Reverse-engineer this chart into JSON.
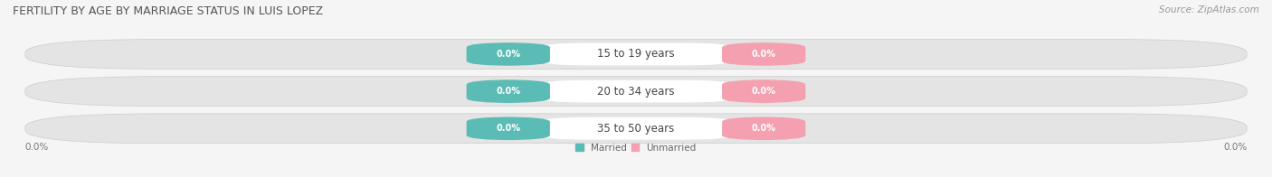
{
  "title": "FERTILITY BY AGE BY MARRIAGE STATUS IN LUIS LOPEZ",
  "source": "Source: ZipAtlas.com",
  "categories": [
    "15 to 19 years",
    "20 to 34 years",
    "35 to 50 years"
  ],
  "married_values": [
    0.0,
    0.0,
    0.0
  ],
  "unmarried_values": [
    0.0,
    0.0,
    0.0
  ],
  "married_color": "#5bbcb5",
  "unmarried_color": "#f4a0b0",
  "bar_bg_color": "#e4e4e4",
  "bar_bg_color2": "#efefef",
  "label_bg_color": "#ffffff",
  "title_fontsize": 9.0,
  "source_fontsize": 7.5,
  "label_fontsize": 7.5,
  "cat_fontsize": 8.5,
  "value_fontsize": 7.0,
  "legend_married": "Married",
  "legend_unmarried": "Unmarried",
  "background_color": "#f5f5f5"
}
